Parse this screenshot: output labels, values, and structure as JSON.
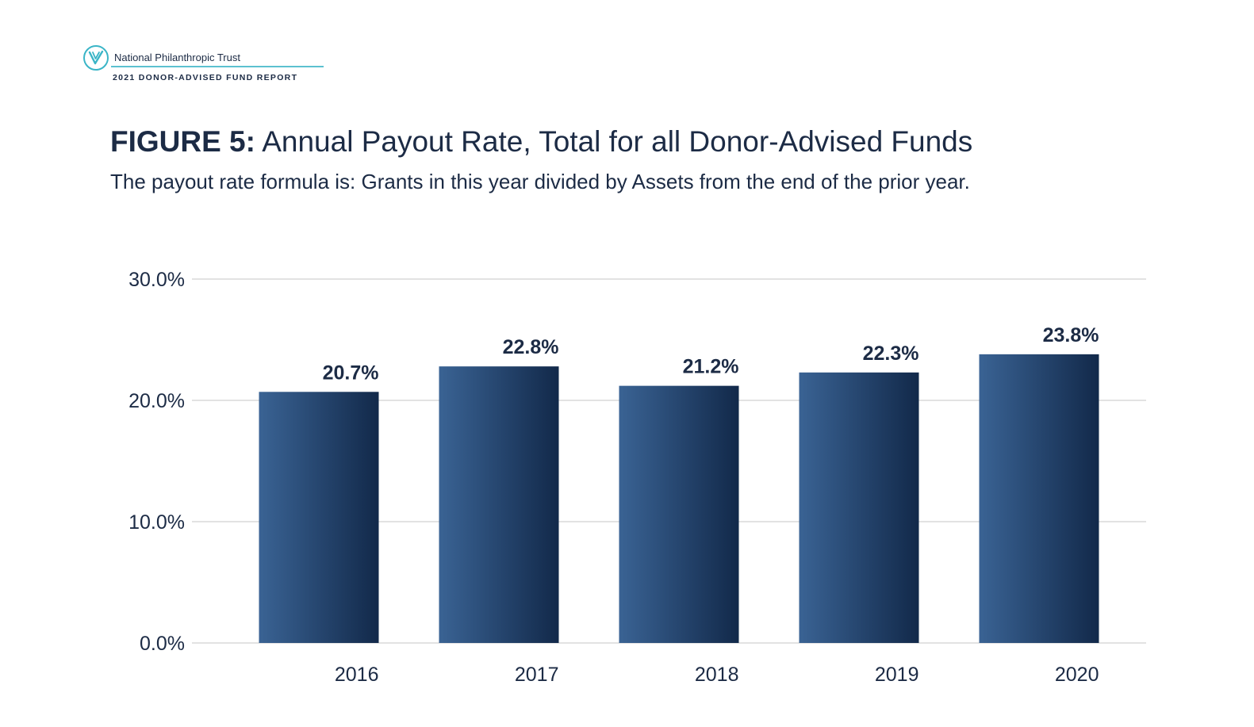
{
  "header": {
    "org_name": "National Philanthropic Trust",
    "report_name": "2021 DONOR-ADVISED FUND REPORT",
    "logo_icon": "leaf-check-icon"
  },
  "figure": {
    "label": "FIGURE 5:",
    "title": "Annual Payout Rate, Total for all Donor-Advised Funds",
    "subtitle": "The payout rate formula is: Grants in this year divided by Assets from the end of the prior year."
  },
  "colors": {
    "bar_light": "#3a6394",
    "bar_dark": "#12294a",
    "grid": "#d9d9d9",
    "text": "#1c2b45",
    "accent": "#3ab5c7"
  },
  "chart_data": {
    "type": "bar",
    "categories": [
      "2016",
      "2017",
      "2018",
      "2019",
      "2020"
    ],
    "values": [
      20.7,
      22.8,
      21.2,
      22.3,
      23.8
    ],
    "value_labels": [
      "20.7%",
      "22.8%",
      "21.2%",
      "22.3%",
      "23.8%"
    ],
    "yticks": [
      0,
      10,
      20,
      30
    ],
    "ytick_labels": [
      "0.0%",
      "10.0%",
      "20.0%",
      "30.0%"
    ],
    "ylim": [
      0,
      30
    ],
    "grid": true,
    "xlabel": "",
    "ylabel": ""
  }
}
